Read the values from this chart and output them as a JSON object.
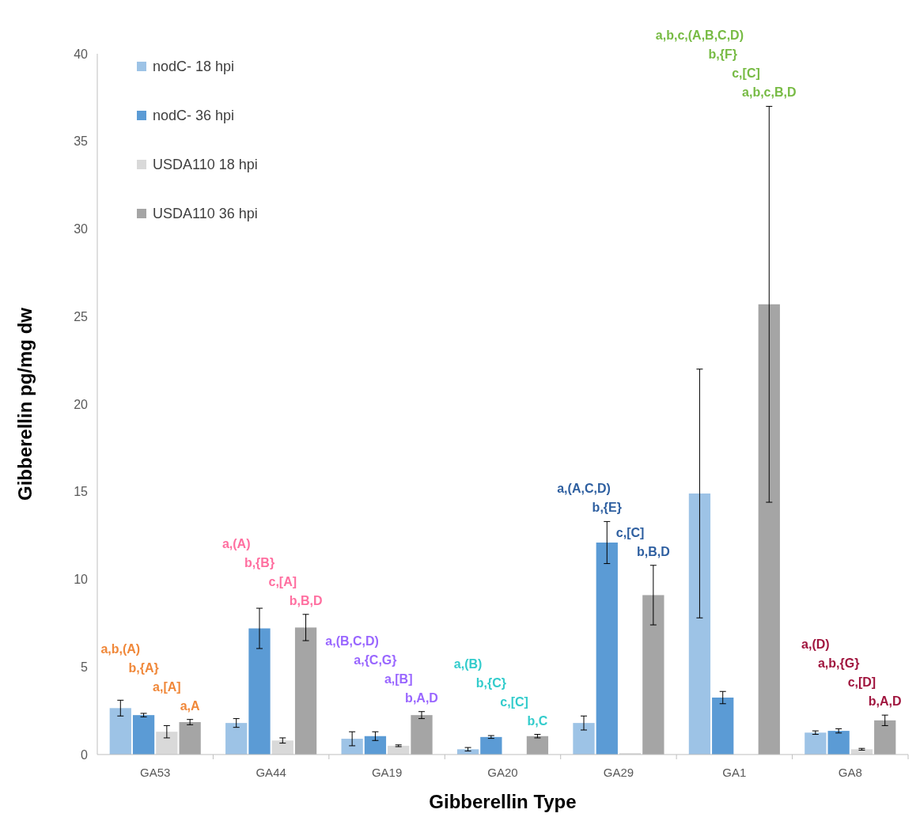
{
  "chart_data": {
    "type": "bar",
    "xlabel": "Gibberellin Type",
    "ylabel": "Gibberellin pg/mg dw",
    "categories": [
      "GA53",
      "GA44",
      "GA19",
      "GA20",
      "GA29",
      "GA1",
      "GA8"
    ],
    "series": [
      {
        "name": "nodC- 18 hpi",
        "color": "#9dc3e6",
        "values": [
          2.65,
          1.8,
          0.9,
          0.3,
          1.8,
          14.9,
          1.25
        ],
        "errors": [
          0.45,
          0.25,
          0.4,
          0.1,
          0.4,
          7.1,
          0.1
        ]
      },
      {
        "name": "nodC- 36 hpi",
        "color": "#5b9bd5",
        "values": [
          2.25,
          7.2,
          1.05,
          1.0,
          12.1,
          3.25,
          1.35
        ],
        "errors": [
          0.1,
          1.15,
          0.25,
          0.08,
          1.2,
          0.35,
          0.12
        ]
      },
      {
        "name": "USDA110 18 hpi",
        "color": "#d9d9d9",
        "values": [
          1.3,
          0.8,
          0.5,
          null,
          0.08,
          null,
          0.3
        ],
        "errors": [
          0.35,
          0.15,
          0.05,
          null,
          null,
          null,
          0.05
        ]
      },
      {
        "name": "USDA110 36 hpi",
        "color": "#a5a5a5",
        "values": [
          1.85,
          7.25,
          2.25,
          1.05,
          9.1,
          25.7,
          1.95
        ],
        "errors": [
          0.15,
          0.75,
          0.2,
          0.1,
          1.7,
          11.3,
          0.3
        ]
      }
    ],
    "ylim": [
      0,
      40
    ],
    "yticks": [
      0,
      5,
      10,
      15,
      20,
      25,
      30,
      35,
      40
    ],
    "grid": false,
    "legend": "top left",
    "annotations": [
      "a,b,(A)",
      "b,{A}",
      "a,[A]",
      "a,A",
      "a,(A)",
      "b,{B}",
      "c,[A]",
      "b,B,D",
      "a,(B,C,D)",
      "a,{C,G}",
      "a,[B]",
      "b,A,D",
      "a,(B)",
      "b,{C}",
      "c,[C]",
      "b,C",
      "a,(A,C,D)",
      "b,{E}",
      "c,[C]",
      "b,B,D",
      "a,b,c,(A,B,C,D)",
      "b,{F}",
      "c,[C]",
      "a,b,c,B,D",
      "a,(D)",
      "a,b,{G}",
      "c,[D]",
      "b,A,D"
    ]
  }
}
